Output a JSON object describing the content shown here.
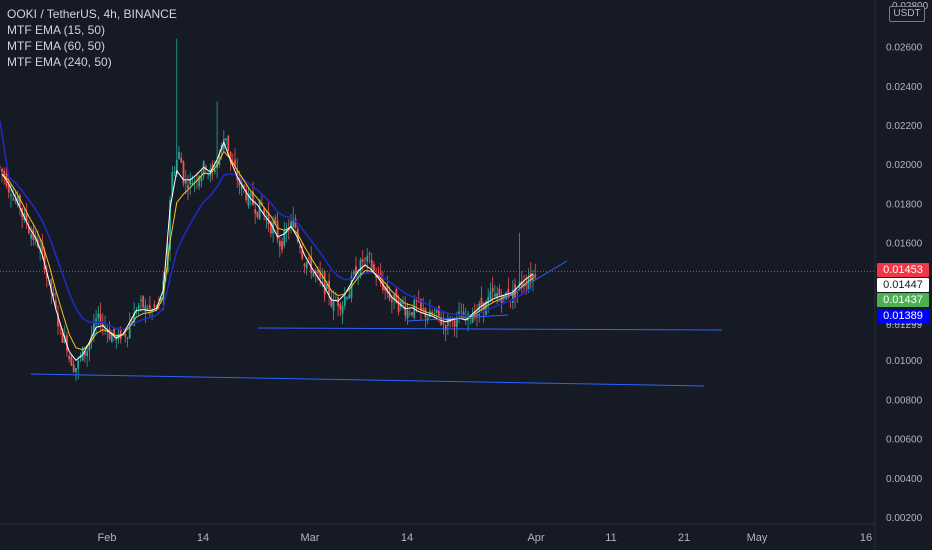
{
  "legend": {
    "symbol": "OOKI / TetherUS, 4h, BINANCE",
    "indicators": [
      "MTF EMA (15, 50)",
      "MTF EMA (60, 50)",
      "MTF EMA (240, 50)"
    ]
  },
  "chart_data": {
    "type": "candlestick",
    "ylabel": "USDT",
    "y_ticks": [
      "0.00200",
      "0.00400",
      "0.00600",
      "0.00800",
      "0.01000",
      "0.01200",
      "0.01400",
      "0.01600",
      "0.01800",
      "0.02000",
      "0.02200",
      "0.02400",
      "0.02600"
    ],
    "y_top_partial": "0.02800",
    "ylim": [
      0.001,
      0.0282
    ],
    "x_ticks": [
      "Feb",
      "14",
      "Mar",
      "14",
      "Apr",
      "11",
      "21",
      "May",
      "16"
    ],
    "price_line": 0.01453,
    "price_labels": [
      {
        "value": "0.01453",
        "bg": "#f23645",
        "color": "#ffffff"
      },
      {
        "value": "0.01447",
        "bg": "#ffffff",
        "color": "#131722"
      },
      {
        "value": "0.01437",
        "bg": "#4caf50",
        "color": "#ffffff"
      },
      {
        "value": "0.01389",
        "bg": "#0000ff",
        "color": "#ffffff"
      }
    ],
    "hidden_label": "0.01299",
    "candles_close": [
      0.0195,
      0.0188,
      0.018,
      0.0172,
      0.0165,
      0.016,
      0.015,
      0.0135,
      0.012,
      0.011,
      0.01,
      0.0098,
      0.0104,
      0.0112,
      0.012,
      0.0118,
      0.0113,
      0.011,
      0.0114,
      0.0122,
      0.0128,
      0.0126,
      0.0125,
      0.0127,
      0.014,
      0.0195,
      0.0205,
      0.019,
      0.0192,
      0.0196,
      0.02,
      0.0195,
      0.0205,
      0.0215,
      0.0198,
      0.019,
      0.0185,
      0.018,
      0.0178,
      0.0172,
      0.0168,
      0.016,
      0.0165,
      0.017,
      0.016,
      0.015,
      0.0145,
      0.014,
      0.0135,
      0.0128,
      0.013,
      0.0135,
      0.0142,
      0.0148,
      0.015,
      0.0145,
      0.014,
      0.0135,
      0.013,
      0.0128,
      0.0125,
      0.0127,
      0.0124,
      0.0123,
      0.0122,
      0.012,
      0.0119,
      0.0121,
      0.0122,
      0.012,
      0.0125,
      0.0128,
      0.013,
      0.0132,
      0.0133,
      0.0134,
      0.0135,
      0.014,
      0.0143,
      0.0145
    ],
    "spikes": [
      {
        "i": 26,
        "high": 0.0264
      },
      {
        "i": 32,
        "high": 0.0232
      },
      {
        "i": 77,
        "high": 0.0165
      }
    ],
    "colors": {
      "up": "#26a69a",
      "down": "#ef5350",
      "ema15": "#ffffff",
      "ema60": "#f5c518",
      "ema240": "#1e2bbf",
      "trendline": "#2962ff",
      "price_line": "#f23645"
    },
    "trendlines": [
      {
        "from": [
          "Jan 25",
          0.0094
        ],
        "to": [
          "Apr 25",
          0.0086
        ]
      },
      {
        "from": [
          "Feb 23",
          0.0118
        ],
        "to": [
          "Apr 28",
          0.0116
        ]
      },
      {
        "from": [
          "Mar 14",
          0.0119
        ],
        "to": [
          "Mar 29",
          0.0123
        ]
      },
      {
        "from": [
          "Mar 29",
          0.013
        ],
        "to": [
          "Apr 5",
          0.0149
        ]
      }
    ]
  }
}
